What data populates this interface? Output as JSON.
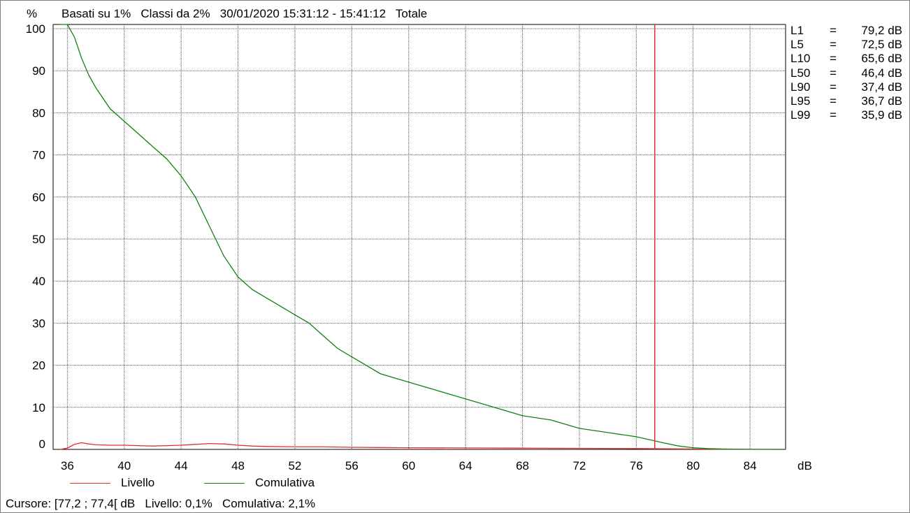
{
  "header": {
    "unit": "%",
    "info": "Basati su 1%   Classi da 2%   30/01/2020 15:31:12 - 15:41:12   Totale"
  },
  "chart_data": {
    "type": "line",
    "xlabel": "dB",
    "ylabel": "%",
    "xlim": [
      35,
      86.5
    ],
    "ylim": [
      0,
      101
    ],
    "xticks": [
      "36",
      "40",
      "44",
      "48",
      "52",
      "56",
      "60",
      "64",
      "68",
      "72",
      "76",
      "80",
      "84"
    ],
    "yticks": [
      "0",
      "10",
      "20",
      "30",
      "40",
      "50",
      "60",
      "70",
      "80",
      "90",
      "100"
    ],
    "grid": true,
    "legend_position": "bottom",
    "cursor": {
      "x": 77.3,
      "color": "#e03030"
    },
    "series": [
      {
        "name": "Livello",
        "color": "#e03030",
        "x": [
          35.5,
          36.0,
          36.5,
          37.0,
          37.5,
          38,
          39,
          40,
          41,
          42,
          43,
          44,
          45,
          46,
          47,
          48,
          49,
          50,
          52,
          54,
          56,
          58,
          60,
          64,
          68,
          72,
          76,
          80,
          82,
          84,
          86.5
        ],
        "y": [
          0.0,
          0.3,
          1.2,
          1.6,
          1.3,
          1.1,
          1.0,
          1.0,
          0.9,
          0.8,
          0.9,
          1.0,
          1.2,
          1.4,
          1.3,
          1.0,
          0.8,
          0.7,
          0.6,
          0.6,
          0.5,
          0.45,
          0.4,
          0.35,
          0.3,
          0.25,
          0.2,
          0.1,
          0.05,
          0.02,
          0.0
        ]
      },
      {
        "name": "Comulativa",
        "color": "#108010",
        "x": [
          35.5,
          36.0,
          36.5,
          37.0,
          37.5,
          38,
          39,
          40,
          41,
          42,
          43,
          44,
          45,
          46,
          47,
          48,
          49,
          50,
          51,
          52,
          53,
          54,
          55,
          56,
          57,
          58,
          59,
          60,
          61,
          62,
          63,
          64,
          65,
          66,
          67,
          68,
          70,
          72,
          74,
          76,
          77.2,
          78,
          79,
          80,
          81,
          82,
          83,
          84,
          85,
          86.5
        ],
        "y": [
          101,
          101,
          98,
          93,
          89,
          86,
          81,
          78,
          75,
          72,
          69,
          65,
          60,
          53,
          46,
          41,
          38,
          36,
          34,
          32,
          30,
          27,
          24,
          22,
          20,
          18,
          17,
          16,
          15,
          14,
          13,
          12,
          11,
          10,
          9,
          8,
          7,
          5,
          4,
          3,
          2.1,
          1.5,
          0.8,
          0.4,
          0.2,
          0.1,
          0.05,
          0.02,
          0.01,
          0.0
        ]
      }
    ]
  },
  "stats": [
    {
      "label": "L1",
      "eq": "=",
      "value": "79,2 dB"
    },
    {
      "label": "L5",
      "eq": "=",
      "value": "72,5 dB"
    },
    {
      "label": "L10",
      "eq": "=",
      "value": "65,6 dB"
    },
    {
      "label": "L50",
      "eq": "=",
      "value": "46,4 dB"
    },
    {
      "label": "L90",
      "eq": "=",
      "value": "37,4 dB"
    },
    {
      "label": "L95",
      "eq": "=",
      "value": "36,7 dB"
    },
    {
      "label": "L99",
      "eq": "=",
      "value": "35,9 dB"
    }
  ],
  "legend": {
    "livello": {
      "label": "Livello",
      "color": "#e03030"
    },
    "comulativa": {
      "label": "Comulativa",
      "color": "#108010"
    }
  },
  "status": "Cursore: [77,2 ; 77,4[ dB   Livello: 0,1%   Comulativa: 2,1%"
}
